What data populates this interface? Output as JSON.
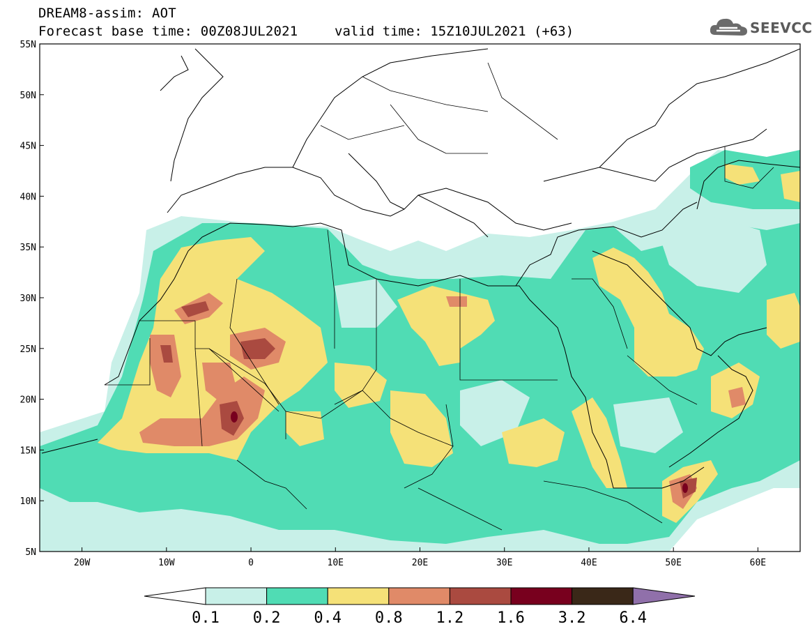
{
  "header": {
    "line1": "DREAM8-assim: AOT",
    "line2": "Forecast base time: 00Z08JUL2021",
    "valid": "valid time: 15Z10JUL2021 (+63)",
    "logo": "SEEVCCC"
  },
  "map": {
    "lon_range": [
      -25,
      65
    ],
    "lat_range": [
      5,
      55
    ],
    "lat_labels": [
      "5N",
      "10N",
      "15N",
      "20N",
      "25N",
      "30N",
      "35N",
      "40N",
      "45N",
      "50N",
      "55N"
    ],
    "lon_labels": [
      "20W",
      "10W",
      "0",
      "10E",
      "20E",
      "30E",
      "40E",
      "50E",
      "60E"
    ],
    "colors": {
      "c01": "#c8f0e8",
      "c02": "#50dcb4",
      "c04": "#f5e178",
      "c08": "#e08a68",
      "c12": "#aa4a40",
      "c16": "#78001e",
      "c32": "#3a2818",
      "c64": "#9070aa"
    }
  },
  "colorbar": {
    "labels": [
      "0.1",
      "0.2",
      "0.4",
      "0.8",
      "1.2",
      "1.6",
      "3.2",
      "6.4"
    ]
  }
}
